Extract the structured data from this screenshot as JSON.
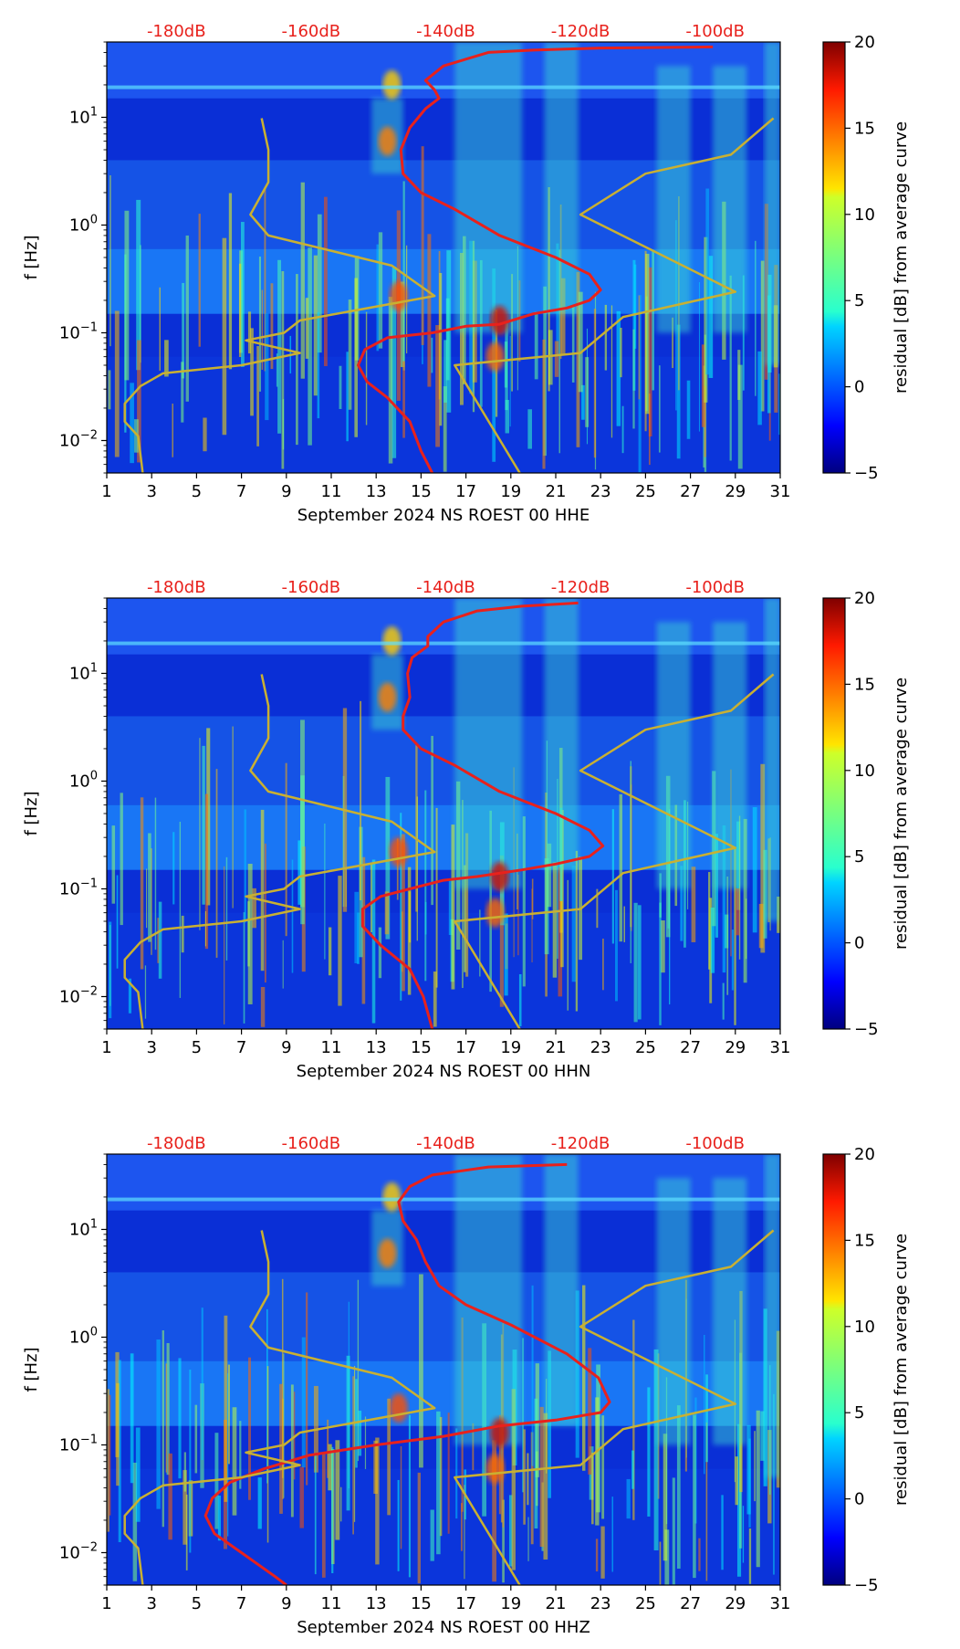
{
  "chart_data": [
    {
      "type": "heatmap",
      "title": "",
      "xlabel": "September 2024 NS ROEST 00 HHE",
      "ylabel": "f [Hz]",
      "xlim": [
        1,
        31
      ],
      "ylim": [
        0.005,
        50
      ],
      "yscale": "log",
      "x_ticks": [
        1,
        3,
        5,
        7,
        9,
        11,
        13,
        15,
        17,
        19,
        21,
        23,
        25,
        27,
        29,
        31
      ],
      "y_ticks": [
        {
          "value": 0.01,
          "base": "10",
          "exp": "−2"
        },
        {
          "value": 0.1,
          "base": "10",
          "exp": "−1"
        },
        {
          "value": 1,
          "base": "10",
          "exp": "0"
        },
        {
          "value": 10,
          "base": "10",
          "exp": "1"
        }
      ],
      "top_labels": [
        {
          "x": 4.1,
          "text": "-180dB"
        },
        {
          "x": 10.1,
          "text": "-160dB"
        },
        {
          "x": 16.1,
          "text": "-140dB"
        },
        {
          "x": 22.1,
          "text": "-120dB"
        },
        {
          "x": 28.1,
          "text": "-100dB"
        }
      ],
      "colorbar": {
        "label": "residual [dB] from average curve",
        "min": -5,
        "max": 20,
        "ticks": [
          -5,
          0,
          5,
          10,
          15,
          20
        ],
        "colormap": "jet"
      },
      "grid": false,
      "series": [
        {
          "color": "#e8211c",
          "points": [
            [
              28,
              45
            ],
            [
              23,
              44
            ],
            [
              20,
              42
            ],
            [
              18,
              40
            ],
            [
              16,
              30
            ],
            [
              15.2,
              22
            ],
            [
              15.6,
              18
            ],
            [
              15.8,
              15
            ],
            [
              15.2,
              12
            ],
            [
              14.5,
              8
            ],
            [
              14.1,
              5
            ],
            [
              14.2,
              3
            ],
            [
              15,
              2
            ],
            [
              16.5,
              1.4
            ],
            [
              18.5,
              0.8
            ],
            [
              21,
              0.5
            ],
            [
              22.5,
              0.35
            ],
            [
              23,
              0.25
            ],
            [
              22.5,
              0.2
            ],
            [
              21.5,
              0.17
            ],
            [
              20,
              0.15
            ],
            [
              18.5,
              0.12
            ],
            [
              17,
              0.115
            ],
            [
              15.5,
              0.1
            ],
            [
              13.5,
              0.09
            ],
            [
              12.5,
              0.07
            ],
            [
              12.2,
              0.05
            ],
            [
              12.6,
              0.035
            ],
            [
              13.5,
              0.025
            ],
            [
              14.5,
              0.015
            ],
            [
              15,
              0.008
            ],
            [
              15.5,
              0.005
            ]
          ]
        },
        {
          "color": "#c9b032",
          "points": [
            [
              7.9,
              9.8
            ],
            [
              8.2,
              5
            ],
            [
              8.2,
              2.5
            ],
            [
              7.4,
              1.25
            ],
            [
              8.2,
              0.8
            ],
            [
              13.7,
              0.42
            ],
            [
              15.6,
              0.22
            ],
            [
              9.6,
              0.13
            ],
            [
              8.9,
              0.1
            ],
            [
              7.2,
              0.085
            ],
            [
              9.6,
              0.065
            ],
            [
              7,
              0.05
            ],
            [
              3.5,
              0.042
            ],
            [
              2.5,
              0.032
            ],
            [
              1.8,
              0.022
            ],
            [
              1.8,
              0.015
            ],
            [
              2.4,
              0.011
            ],
            [
              2.6,
              0.005
            ]
          ],
          "label": ""
        },
        {
          "color": "#c9b032",
          "points": [
            [
              30.7,
              9.8
            ],
            [
              28.8,
              4.5
            ],
            [
              25,
              3
            ],
            [
              22.1,
              1.25
            ],
            [
              29,
              0.24
            ],
            [
              24,
              0.14
            ],
            [
              22.1,
              0.065
            ],
            [
              16.5,
              0.05
            ],
            [
              19.4,
              0.005
            ]
          ]
        }
      ]
    },
    {
      "type": "heatmap",
      "title": "",
      "xlabel": "September 2024 NS ROEST 00 HHN",
      "ylabel": "f [Hz]",
      "xlim": [
        1,
        31
      ],
      "ylim": [
        0.005,
        50
      ],
      "yscale": "log",
      "x_ticks": [
        1,
        3,
        5,
        7,
        9,
        11,
        13,
        15,
        17,
        19,
        21,
        23,
        25,
        27,
        29,
        31
      ],
      "y_ticks": [
        {
          "value": 0.01,
          "base": "10",
          "exp": "−2"
        },
        {
          "value": 0.1,
          "base": "10",
          "exp": "−1"
        },
        {
          "value": 1,
          "base": "10",
          "exp": "0"
        },
        {
          "value": 10,
          "base": "10",
          "exp": "1"
        }
      ],
      "top_labels": [
        {
          "x": 4.1,
          "text": "-180dB"
        },
        {
          "x": 10.1,
          "text": "-160dB"
        },
        {
          "x": 16.1,
          "text": "-140dB"
        },
        {
          "x": 22.1,
          "text": "-120dB"
        },
        {
          "x": 28.1,
          "text": "-100dB"
        }
      ],
      "colorbar": {
        "label": "residual [dB] from average curve",
        "min": -5,
        "max": 20,
        "ticks": [
          -5,
          0,
          5,
          10,
          15,
          20
        ],
        "colormap": "jet"
      },
      "grid": false,
      "series": [
        {
          "color": "#e8211c",
          "points": [
            [
              22,
              45
            ],
            [
              19.5,
              42
            ],
            [
              17.5,
              38
            ],
            [
              16,
              30
            ],
            [
              15.3,
              22
            ],
            [
              15.3,
              18
            ],
            [
              14.6,
              14
            ],
            [
              14.4,
              10
            ],
            [
              14.5,
              6
            ],
            [
              14.2,
              4
            ],
            [
              14.2,
              3
            ],
            [
              15,
              2
            ],
            [
              16.5,
              1.4
            ],
            [
              18.5,
              0.8
            ],
            [
              21,
              0.5
            ],
            [
              22.5,
              0.35
            ],
            [
              23.1,
              0.25
            ],
            [
              22.5,
              0.2
            ],
            [
              21,
              0.17
            ],
            [
              19.5,
              0.15
            ],
            [
              17.5,
              0.13
            ],
            [
              16,
              0.12
            ],
            [
              14.5,
              0.1
            ],
            [
              13.2,
              0.085
            ],
            [
              12.4,
              0.065
            ],
            [
              12.4,
              0.045
            ],
            [
              13.2,
              0.03
            ],
            [
              14.5,
              0.018
            ],
            [
              15.1,
              0.01
            ],
            [
              15.5,
              0.005
            ]
          ]
        },
        {
          "color": "#c9b032",
          "points": [
            [
              7.9,
              9.8
            ],
            [
              8.2,
              5
            ],
            [
              8.2,
              2.5
            ],
            [
              7.4,
              1.25
            ],
            [
              8.2,
              0.8
            ],
            [
              13.7,
              0.42
            ],
            [
              15.6,
              0.22
            ],
            [
              9.6,
              0.13
            ],
            [
              8.9,
              0.1
            ],
            [
              7.2,
              0.085
            ],
            [
              9.6,
              0.065
            ],
            [
              7,
              0.05
            ],
            [
              3.5,
              0.042
            ],
            [
              2.5,
              0.032
            ],
            [
              1.8,
              0.022
            ],
            [
              1.8,
              0.015
            ],
            [
              2.4,
              0.011
            ],
            [
              2.6,
              0.005
            ]
          ]
        },
        {
          "color": "#c9b032",
          "points": [
            [
              30.7,
              9.8
            ],
            [
              28.8,
              4.5
            ],
            [
              25,
              3
            ],
            [
              22.1,
              1.25
            ],
            [
              29,
              0.24
            ],
            [
              24,
              0.14
            ],
            [
              22.1,
              0.065
            ],
            [
              16.5,
              0.05
            ],
            [
              19.4,
              0.005
            ]
          ]
        }
      ]
    },
    {
      "type": "heatmap",
      "title": "",
      "xlabel": "September 2024 NS ROEST 00 HHZ",
      "ylabel": "f [Hz]",
      "xlim": [
        1,
        31
      ],
      "ylim": [
        0.005,
        50
      ],
      "yscale": "log",
      "x_ticks": [
        1,
        3,
        5,
        7,
        9,
        11,
        13,
        15,
        17,
        19,
        21,
        23,
        25,
        27,
        29,
        31
      ],
      "y_ticks": [
        {
          "value": 0.01,
          "base": "10",
          "exp": "−2"
        },
        {
          "value": 0.1,
          "base": "10",
          "exp": "−1"
        },
        {
          "value": 1,
          "base": "10",
          "exp": "0"
        },
        {
          "value": 10,
          "base": "10",
          "exp": "1"
        }
      ],
      "top_labels": [
        {
          "x": 4.1,
          "text": "-180dB"
        },
        {
          "x": 10.1,
          "text": "-160dB"
        },
        {
          "x": 16.1,
          "text": "-140dB"
        },
        {
          "x": 22.1,
          "text": "-120dB"
        },
        {
          "x": 28.1,
          "text": "-100dB"
        }
      ],
      "colorbar": {
        "label": "residual [dB] from average curve",
        "min": -5,
        "max": 20,
        "ticks": [
          -5,
          0,
          5,
          10,
          15,
          20
        ],
        "colormap": "jet"
      },
      "grid": false,
      "series": [
        {
          "color": "#e8211c",
          "points": [
            [
              21.5,
              40
            ],
            [
              18,
              38
            ],
            [
              15.5,
              32
            ],
            [
              14.5,
              25
            ],
            [
              14,
              18
            ],
            [
              14.2,
              12
            ],
            [
              14.8,
              8
            ],
            [
              15.2,
              5
            ],
            [
              15.8,
              3
            ],
            [
              17,
              2
            ],
            [
              19,
              1.3
            ],
            [
              21.5,
              0.7
            ],
            [
              22.9,
              0.42
            ],
            [
              23.4,
              0.25
            ],
            [
              23,
              0.2
            ],
            [
              21,
              0.17
            ],
            [
              18.5,
              0.15
            ],
            [
              16,
              0.12
            ],
            [
              13,
              0.1
            ],
            [
              10,
              0.08
            ],
            [
              8,
              0.06
            ],
            [
              6.5,
              0.045
            ],
            [
              5.7,
              0.032
            ],
            [
              5.4,
              0.022
            ],
            [
              5.8,
              0.015
            ],
            [
              7,
              0.01
            ],
            [
              8.5,
              0.006
            ],
            [
              9,
              0.005
            ]
          ]
        },
        {
          "color": "#c9b032",
          "points": [
            [
              7.9,
              9.8
            ],
            [
              8.2,
              5
            ],
            [
              8.2,
              2.5
            ],
            [
              7.4,
              1.25
            ],
            [
              8.2,
              0.8
            ],
            [
              13.7,
              0.42
            ],
            [
              15.6,
              0.22
            ],
            [
              9.6,
              0.13
            ],
            [
              8.9,
              0.1
            ],
            [
              7.2,
              0.085
            ],
            [
              9.6,
              0.065
            ],
            [
              7,
              0.05
            ],
            [
              3.5,
              0.042
            ],
            [
              2.5,
              0.032
            ],
            [
              1.8,
              0.022
            ],
            [
              1.8,
              0.015
            ],
            [
              2.4,
              0.011
            ],
            [
              2.6,
              0.005
            ]
          ]
        },
        {
          "color": "#c9b032",
          "points": [
            [
              30.7,
              9.8
            ],
            [
              28.8,
              4.5
            ],
            [
              25,
              3
            ],
            [
              22.1,
              1.25
            ],
            [
              29,
              0.24
            ],
            [
              24,
              0.14
            ],
            [
              22.1,
              0.065
            ],
            [
              16.5,
              0.05
            ],
            [
              19.4,
              0.005
            ]
          ]
        }
      ]
    }
  ]
}
